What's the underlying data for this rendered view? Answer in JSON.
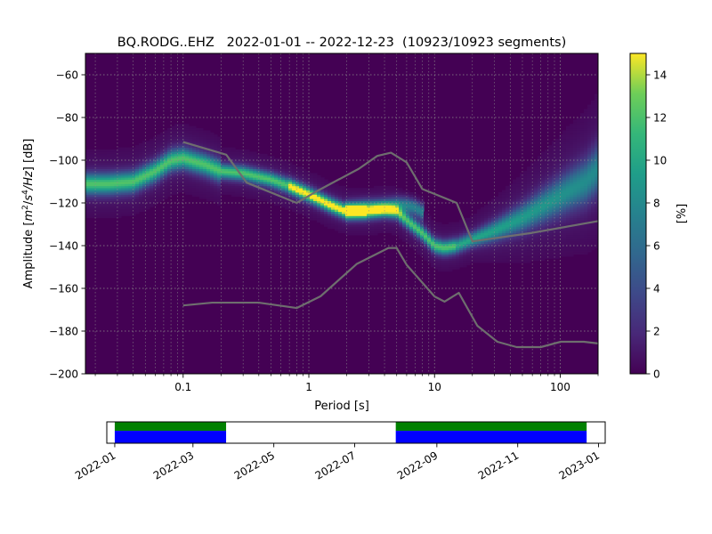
{
  "chart_data": [
    {
      "type": "heatmap",
      "title": "BQ.RODG..EHZ   2022-01-01 -- 2022-12-23  (10923/10923 segments)",
      "xlabel": "Period [s]",
      "ylabel_prefix": "Amplitude [",
      "ylabel_math": {
        "base1": "m",
        "exp1": "2",
        "sep1": "/",
        "base2": "s",
        "exp2": "4",
        "sep2": "/Hz"
      },
      "ylabel_suffix": "] [dB]",
      "xscale": "log",
      "xlim": [
        0.0167,
        200
      ],
      "ylim": [
        -200,
        -50
      ],
      "x_ticks": [
        {
          "value": 0.1,
          "label": "0.1"
        },
        {
          "value": 1,
          "label": "1"
        },
        {
          "value": 10,
          "label": "10"
        },
        {
          "value": 100,
          "label": "100"
        }
      ],
      "y_ticks": [
        {
          "value": -60,
          "label": "−60"
        },
        {
          "value": -80,
          "label": "−80"
        },
        {
          "value": -100,
          "label": "−100"
        },
        {
          "value": -120,
          "label": "−120"
        },
        {
          "value": -140,
          "label": "−140"
        },
        {
          "value": -160,
          "label": "−160"
        },
        {
          "value": -180,
          "label": "−180"
        },
        {
          "value": -200,
          "label": "−200"
        }
      ],
      "grid": true,
      "colormap": "viridis",
      "colorbar": {
        "label": "[%]",
        "range": [
          0,
          15
        ],
        "ticks": [
          {
            "value": 0,
            "label": "0"
          },
          {
            "value": 2,
            "label": "2"
          },
          {
            "value": 4,
            "label": "4"
          },
          {
            "value": 6,
            "label": "6"
          },
          {
            "value": 8,
            "label": "8"
          },
          {
            "value": 10,
            "label": "10"
          },
          {
            "value": 12,
            "label": "12"
          },
          {
            "value": 14,
            "label": "14"
          }
        ]
      },
      "mode_curve": {
        "x": [
          0.0167,
          0.025,
          0.04,
          0.06,
          0.08,
          0.1,
          0.15,
          0.2,
          0.3,
          0.5,
          0.7,
          1.0,
          1.5,
          2.0,
          2.5,
          3.0,
          4.0,
          5.0,
          6.0,
          8.0,
          10,
          12,
          15,
          20,
          30,
          50,
          80,
          120,
          160,
          200
        ],
        "y": [
          -111,
          -111,
          -110,
          -105,
          -100,
          -99,
          -102,
          -105,
          -106,
          -109,
          -112,
          -116,
          -121,
          -124,
          -124,
          -124,
          -123,
          -124,
          -128,
          -134,
          -140,
          -141,
          -140,
          -137,
          -133,
          -127,
          -120,
          -114,
          -110,
          -104
        ]
      },
      "secondary_branch": {
        "x": [
          2.0,
          3.0,
          4.0,
          5.0,
          6.0,
          7.0,
          8.0
        ],
        "y": [
          -123,
          -122,
          -122,
          -121,
          -121,
          -122,
          -124
        ]
      },
      "noise_models": [
        {
          "x": [
            0.1,
            0.22,
            0.32,
            0.8,
            1.2,
            2.5,
            3.5,
            4.5,
            6.0,
            8.0,
            15.0,
            20.0,
            60.0,
            200.0
          ],
          "y": [
            -91.5,
            -97.4,
            -110.5,
            -120.0,
            -114.0,
            -104.0,
            -98.0,
            -96.5,
            -101.0,
            -113.5,
            -120.0,
            -138.0,
            -134.0,
            -128.5
          ]
        },
        {
          "x": [
            0.1,
            0.17,
            0.4,
            0.8,
            1.24,
            2.4,
            4.3,
            5.0,
            6.0,
            10.0,
            12.0,
            15.6,
            21.9,
            31.6,
            45.0,
            70.0,
            101.0,
            154.0,
            200.0
          ],
          "y": [
            -168.0,
            -166.7,
            -166.7,
            -169.2,
            -163.7,
            -148.6,
            -141.1,
            -141.1,
            -149.0,
            -163.8,
            -166.2,
            -162.1,
            -177.5,
            -185.0,
            -187.5,
            -187.5,
            -185.0,
            -185.0,
            -185.8
          ]
        }
      ]
    },
    {
      "type": "timeline",
      "x_ticks": [
        {
          "date": "2022-01-01",
          "label": "2022-01"
        },
        {
          "date": "2022-03-01",
          "label": "2022-03"
        },
        {
          "date": "2022-05-01",
          "label": "2022-05"
        },
        {
          "date": "2022-07-01",
          "label": "2022-07"
        },
        {
          "date": "2022-09-01",
          "label": "2022-09"
        },
        {
          "date": "2022-11-01",
          "label": "2022-11"
        },
        {
          "date": "2023-01-01",
          "label": "2023-01"
        }
      ],
      "xlim": [
        "2021-12-26",
        "2023-01-06"
      ],
      "coverage_segments": [
        {
          "start": "2022-01-01",
          "end": "2022-03-26"
        },
        {
          "start": "2022-08-01",
          "end": "2022-12-23"
        }
      ],
      "colors": {
        "upper": "#008000",
        "lower": "#0000ff"
      }
    }
  ]
}
